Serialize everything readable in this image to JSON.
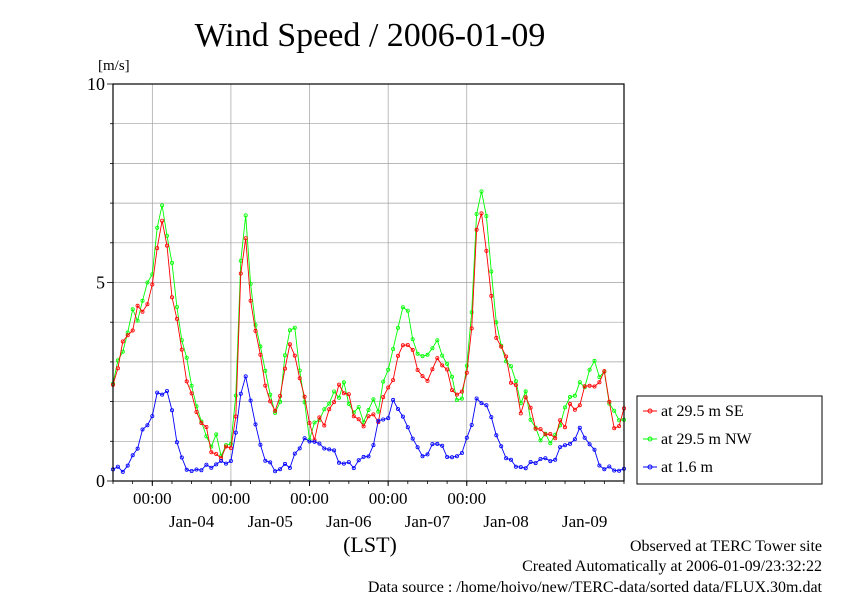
{
  "chart_data": {
    "type": "line",
    "title": "Wind Speed / 2006-01-09",
    "ylabel": "[m/s]",
    "xlabel": "(LST)",
    "ylim": [
      0,
      10
    ],
    "y_ticks": [
      0,
      5,
      10
    ],
    "x_start": "2006-01-03 12:00",
    "x_end": "2006-01-09 24:00",
    "time_tick_label": "00:00",
    "midnight_ticks": [
      "2006-01-04 00:00",
      "2006-01-05 00:00",
      "2006-01-06 00:00",
      "2006-01-07 00:00",
      "2006-01-08 00:00"
    ],
    "day_labels": [
      {
        "label": "Jan-04",
        "at": "2006-01-04 12:00"
      },
      {
        "label": "Jan-05",
        "at": "2006-01-05 12:00"
      },
      {
        "label": "Jan-06",
        "at": "2006-01-06 12:00"
      },
      {
        "label": "Jan-07",
        "at": "2006-01-07 12:00"
      },
      {
        "label": "Jan-08",
        "at": "2006-01-08 12:00"
      },
      {
        "label": "Jan-09",
        "at": "2006-01-09 12:00"
      }
    ],
    "grid": true,
    "legend_position": "bottom-right",
    "series": [
      {
        "name": "at 29.5 m SE",
        "color": "#ff0000",
        "points": [
          [
            "2006-01-03 12:00",
            2.3
          ],
          [
            "2006-01-03 15:00",
            3.3
          ],
          [
            "2006-01-03 18:00",
            4.0
          ],
          [
            "2006-01-03 21:00",
            4.4
          ],
          [
            "2006-01-04 00:00",
            5.0
          ],
          [
            "2006-01-04 02:00",
            6.3
          ],
          [
            "2006-01-04 03:00",
            6.4
          ],
          [
            "2006-01-04 05:00",
            5.5
          ],
          [
            "2006-01-04 07:00",
            4.2
          ],
          [
            "2006-01-04 09:00",
            3.2
          ],
          [
            "2006-01-04 11:00",
            2.6
          ],
          [
            "2006-01-04 13:00",
            2.0
          ],
          [
            "2006-01-04 15:00",
            1.4
          ],
          [
            "2006-01-04 17:00",
            1.0
          ],
          [
            "2006-01-04 19:00",
            0.9
          ],
          [
            "2006-01-04 21:00",
            0.8
          ],
          [
            "2006-01-04 23:00",
            0.9
          ],
          [
            "2006-01-05 01:00",
            1.2
          ],
          [
            "2006-01-05 02:00",
            2.5
          ],
          [
            "2006-01-05 03:00",
            5.0
          ],
          [
            "2006-01-05 04:00",
            6.1
          ],
          [
            "2006-01-05 05:00",
            5.7
          ],
          [
            "2006-01-05 06:00",
            4.6
          ],
          [
            "2006-01-05 08:00",
            3.3
          ],
          [
            "2006-01-05 10:00",
            2.6
          ],
          [
            "2006-01-05 12:00",
            2.0
          ],
          [
            "2006-01-05 14:00",
            1.6
          ],
          [
            "2006-01-05 16:00",
            2.6
          ],
          [
            "2006-01-05 18:00",
            3.5
          ],
          [
            "2006-01-05 20:00",
            3.2
          ],
          [
            "2006-01-05 22:00",
            2.3
          ],
          [
            "2006-01-06 00:00",
            1.2
          ],
          [
            "2006-01-06 03:00",
            1.4
          ],
          [
            "2006-01-06 06:00",
            1.9
          ],
          [
            "2006-01-06 09:00",
            2.2
          ],
          [
            "2006-01-06 12:00",
            2.1
          ],
          [
            "2006-01-06 15:00",
            1.7
          ],
          [
            "2006-01-06 18:00",
            1.5
          ],
          [
            "2006-01-06 21:00",
            1.7
          ],
          [
            "2006-01-07 00:00",
            2.5
          ],
          [
            "2006-01-07 03:00",
            3.0
          ],
          [
            "2006-01-07 05:00",
            3.6
          ],
          [
            "2006-01-07 07:00",
            3.2
          ],
          [
            "2006-01-07 09:00",
            2.7
          ],
          [
            "2006-01-07 11:00",
            2.4
          ],
          [
            "2006-01-07 13:00",
            2.8
          ],
          [
            "2006-01-07 15:00",
            3.2
          ],
          [
            "2006-01-07 17:00",
            2.8
          ],
          [
            "2006-01-07 19:00",
            2.4
          ],
          [
            "2006-01-07 21:00",
            2.0
          ],
          [
            "2006-01-07 23:00",
            2.2
          ],
          [
            "2006-01-08 01:00",
            3.0
          ],
          [
            "2006-01-08 02:00",
            4.5
          ],
          [
            "2006-01-08 03:00",
            6.5
          ],
          [
            "2006-01-08 04:00",
            7.0
          ],
          [
            "2006-01-08 05:00",
            6.5
          ],
          [
            "2006-01-08 06:00",
            5.8
          ],
          [
            "2006-01-08 07:00",
            4.8
          ],
          [
            "2006-01-08 08:00",
            4.2
          ],
          [
            "2006-01-08 10:00",
            3.4
          ],
          [
            "2006-01-08 12:00",
            2.9
          ],
          [
            "2006-01-08 14:00",
            2.6
          ],
          [
            "2006-01-08 16:00",
            2.0
          ],
          [
            "2006-01-08 18:00",
            1.9
          ],
          [
            "2006-01-08 20:00",
            1.5
          ],
          [
            "2006-01-08 22:00",
            1.2
          ],
          [
            "2006-01-09 00:00",
            1.0
          ],
          [
            "2006-01-09 03:00",
            1.2
          ],
          [
            "2006-01-09 06:00",
            1.6
          ],
          [
            "2006-01-09 09:00",
            2.0
          ],
          [
            "2006-01-09 12:00",
            2.3
          ],
          [
            "2006-01-09 15:00",
            2.6
          ],
          [
            "2006-01-09 18:00",
            2.5
          ],
          [
            "2006-01-09 21:00",
            1.4
          ],
          [
            "2006-01-09 24:00",
            1.6
          ]
        ]
      },
      {
        "name": "at 29.5 m NW",
        "color": "#00ff00",
        "points": [
          [
            "2006-01-03 12:00",
            2.4
          ],
          [
            "2006-01-03 15:00",
            3.5
          ],
          [
            "2006-01-03 18:00",
            4.1
          ],
          [
            "2006-01-03 21:00",
            4.5
          ],
          [
            "2006-01-04 00:00",
            5.3
          ],
          [
            "2006-01-04 02:00",
            6.7
          ],
          [
            "2006-01-04 03:00",
            7.0
          ],
          [
            "2006-01-04 05:00",
            6.0
          ],
          [
            "2006-01-04 07:00",
            4.7
          ],
          [
            "2006-01-04 09:00",
            3.5
          ],
          [
            "2006-01-04 11:00",
            2.9
          ],
          [
            "2006-01-04 13:00",
            2.1
          ],
          [
            "2006-01-04 15:00",
            1.5
          ],
          [
            "2006-01-04 17:00",
            1.1
          ],
          [
            "2006-01-04 19:00",
            1.0
          ],
          [
            "2006-01-04 21:00",
            0.9
          ],
          [
            "2006-01-04 23:00",
            1.0
          ],
          [
            "2006-01-05 01:00",
            1.3
          ],
          [
            "2006-01-05 02:00",
            2.8
          ],
          [
            "2006-01-05 03:00",
            5.6
          ],
          [
            "2006-01-05 04:00",
            7.2
          ],
          [
            "2006-01-05 05:00",
            6.0
          ],
          [
            "2006-01-05 06:00",
            4.8
          ],
          [
            "2006-01-05 08:00",
            3.5
          ],
          [
            "2006-01-05 10:00",
            2.8
          ],
          [
            "2006-01-05 12:00",
            2.1
          ],
          [
            "2006-01-05 14:00",
            1.7
          ],
          [
            "2006-01-05 16:00",
            2.8
          ],
          [
            "2006-01-05 18:00",
            3.9
          ],
          [
            "2006-01-05 20:00",
            3.5
          ],
          [
            "2006-01-05 22:00",
            2.4
          ],
          [
            "2006-01-06 00:00",
            1.3
          ],
          [
            "2006-01-06 03:00",
            1.5
          ],
          [
            "2006-01-06 06:00",
            2.0
          ],
          [
            "2006-01-06 09:00",
            2.3
          ],
          [
            "2006-01-06 12:00",
            2.2
          ],
          [
            "2006-01-06 15:00",
            1.8
          ],
          [
            "2006-01-06 18:00",
            1.7
          ],
          [
            "2006-01-06 21:00",
            2.0
          ],
          [
            "2006-01-07 00:00",
            3.0
          ],
          [
            "2006-01-07 03:00",
            3.6
          ],
          [
            "2006-01-07 05:00",
            4.4
          ],
          [
            "2006-01-07 07:00",
            3.7
          ],
          [
            "2006-01-07 09:00",
            3.3
          ],
          [
            "2006-01-07 11:00",
            3.0
          ],
          [
            "2006-01-07 13:00",
            3.5
          ],
          [
            "2006-01-07 15:00",
            3.8
          ],
          [
            "2006-01-07 17:00",
            3.2
          ],
          [
            "2006-01-07 19:00",
            2.7
          ],
          [
            "2006-01-07 21:00",
            2.2
          ],
          [
            "2006-01-07 23:00",
            2.4
          ],
          [
            "2006-01-08 01:00",
            3.2
          ],
          [
            "2006-01-08 02:00",
            4.8
          ],
          [
            "2006-01-08 03:00",
            7.0
          ],
          [
            "2006-01-08 04:00",
            7.4
          ],
          [
            "2006-01-08 05:00",
            6.9
          ],
          [
            "2006-01-08 06:00",
            6.5
          ],
          [
            "2006-01-08 07:00",
            5.5
          ],
          [
            "2006-01-08 08:00",
            4.6
          ],
          [
            "2006-01-08 10:00",
            3.7
          ],
          [
            "2006-01-08 12:00",
            3.2
          ],
          [
            "2006-01-08 14:00",
            2.8
          ],
          [
            "2006-01-08 16:00",
            2.2
          ],
          [
            "2006-01-08 18:00",
            2.0
          ],
          [
            "2006-01-08 20:00",
            1.6
          ],
          [
            "2006-01-08 22:00",
            1.3
          ],
          [
            "2006-01-09 00:00",
            1.1
          ],
          [
            "2006-01-09 03:00",
            1.3
          ],
          [
            "2006-01-09 06:00",
            1.7
          ],
          [
            "2006-01-09 09:00",
            2.1
          ],
          [
            "2006-01-09 12:00",
            2.4
          ],
          [
            "2006-01-09 15:00",
            2.8
          ],
          [
            "2006-01-09 18:00",
            2.7
          ],
          [
            "2006-01-09 21:00",
            1.6
          ],
          [
            "2006-01-09 24:00",
            1.8
          ]
        ]
      },
      {
        "name": "at 1.6 m",
        "color": "#0000ff",
        "points": [
          [
            "2006-01-03 12:00",
            0.3
          ],
          [
            "2006-01-03 15:00",
            0.3
          ],
          [
            "2006-01-03 18:00",
            0.6
          ],
          [
            "2006-01-03 21:00",
            1.2
          ],
          [
            "2006-01-04 00:00",
            1.7
          ],
          [
            "2006-01-04 02:00",
            2.3
          ],
          [
            "2006-01-04 04:00",
            2.3
          ],
          [
            "2006-01-04 06:00",
            1.8
          ],
          [
            "2006-01-04 08:00",
            0.8
          ],
          [
            "2006-01-04 10:00",
            0.4
          ],
          [
            "2006-01-04 12:00",
            0.3
          ],
          [
            "2006-01-04 15:00",
            0.3
          ],
          [
            "2006-01-04 18:00",
            0.4
          ],
          [
            "2006-01-04 21:00",
            0.4
          ],
          [
            "2006-01-05 00:00",
            0.6
          ],
          [
            "2006-01-05 02:00",
            1.5
          ],
          [
            "2006-01-05 04:00",
            2.7
          ],
          [
            "2006-01-05 05:00",
            2.6
          ],
          [
            "2006-01-05 07:00",
            1.6
          ],
          [
            "2006-01-05 09:00",
            0.8
          ],
          [
            "2006-01-05 12:00",
            0.4
          ],
          [
            "2006-01-05 15:00",
            0.3
          ],
          [
            "2006-01-05 18:00",
            0.4
          ],
          [
            "2006-01-05 21:00",
            0.9
          ],
          [
            "2006-01-06 00:00",
            1.1
          ],
          [
            "2006-01-06 03:00",
            1.0
          ],
          [
            "2006-01-06 06:00",
            0.8
          ],
          [
            "2006-01-06 09:00",
            0.5
          ],
          [
            "2006-01-06 12:00",
            0.5
          ],
          [
            "2006-01-06 15:00",
            0.4
          ],
          [
            "2006-01-06 18:00",
            0.6
          ],
          [
            "2006-01-06 21:00",
            1.4
          ],
          [
            "2006-01-07 00:00",
            1.7
          ],
          [
            "2006-01-07 02:00",
            2.0
          ],
          [
            "2006-01-07 04:00",
            1.8
          ],
          [
            "2006-01-07 06:00",
            1.4
          ],
          [
            "2006-01-07 08:00",
            0.8
          ],
          [
            "2006-01-07 11:00",
            0.6
          ],
          [
            "2006-01-07 14:00",
            0.9
          ],
          [
            "2006-01-07 17:00",
            0.8
          ],
          [
            "2006-01-07 20:00",
            0.5
          ],
          [
            "2006-01-07 23:00",
            0.8
          ],
          [
            "2006-01-08 01:00",
            1.3
          ],
          [
            "2006-01-08 03:00",
            2.0
          ],
          [
            "2006-01-08 05:00",
            2.1
          ],
          [
            "2006-01-08 07:00",
            1.9
          ],
          [
            "2006-01-08 09:00",
            1.2
          ],
          [
            "2006-01-08 11:00",
            0.7
          ],
          [
            "2006-01-08 14:00",
            0.4
          ],
          [
            "2006-01-08 17:00",
            0.4
          ],
          [
            "2006-01-08 20:00",
            0.5
          ],
          [
            "2006-01-08 23:00",
            0.6
          ],
          [
            "2006-01-09 02:00",
            0.5
          ],
          [
            "2006-01-09 05:00",
            0.8
          ],
          [
            "2006-01-09 08:00",
            1.1
          ],
          [
            "2006-01-09 11:00",
            1.3
          ],
          [
            "2006-01-09 14:00",
            0.9
          ],
          [
            "2006-01-09 17:00",
            0.4
          ],
          [
            "2006-01-09 20:00",
            0.3
          ],
          [
            "2006-01-09 24:00",
            0.4
          ]
        ]
      }
    ]
  },
  "footer": {
    "line1": "Observed at TERC Tower site",
    "line2": "Created Automatically at 2006-01-09/23:32:22",
    "line3": "Data source : /home/hoivo/new/TERC-data/sorted  data/FLUX.30m.dat"
  }
}
